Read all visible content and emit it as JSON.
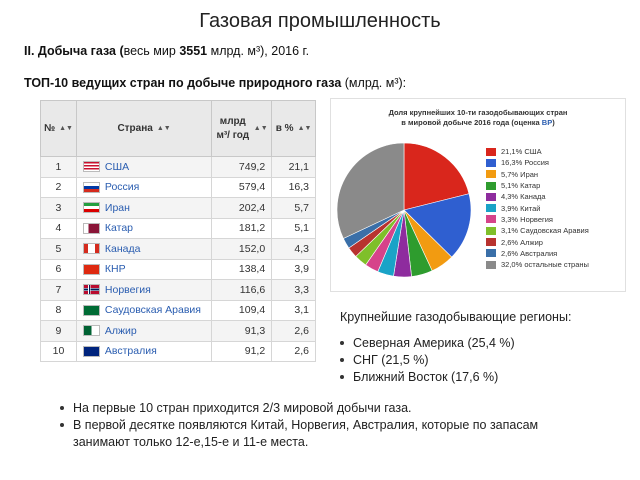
{
  "title": "Газовая промышленность",
  "subtitle": {
    "lead_bold": "II. Добыча газа (",
    "lead_plain": "весь мир ",
    "world_total": "3551",
    "rest": " млрд. м³), 2016 г."
  },
  "table_heading": {
    "bold": "ТОП-10 ведущих стран по добыче природного газа",
    "plain": " (млрд. м³):"
  },
  "table": {
    "headers": {
      "n": "№",
      "country": "Страна",
      "value": "млрд м³/ год",
      "pct": "в %"
    },
    "rows": [
      {
        "n": "1",
        "country": "США",
        "value": "749,2",
        "pct": "21,1",
        "flag": "usa"
      },
      {
        "n": "2",
        "country": "Россия",
        "value": "579,4",
        "pct": "16,3",
        "flag": "russia"
      },
      {
        "n": "3",
        "country": "Иран",
        "value": "202,4",
        "pct": "5,7",
        "flag": "iran"
      },
      {
        "n": "4",
        "country": "Катар",
        "value": "181,2",
        "pct": "5,1",
        "flag": "qatar"
      },
      {
        "n": "5",
        "country": "Канада",
        "value": "152,0",
        "pct": "4,3",
        "flag": "canada"
      },
      {
        "n": "6",
        "country": "КНР",
        "value": "138,4",
        "pct": "3,9",
        "flag": "china"
      },
      {
        "n": "7",
        "country": "Норвегия",
        "value": "116,6",
        "pct": "3,3",
        "flag": "norway"
      },
      {
        "n": "8",
        "country": "Саудовская Аравия",
        "value": "109,4",
        "pct": "3,1",
        "flag": "saudi"
      },
      {
        "n": "9",
        "country": "Алжир",
        "value": "91,3",
        "pct": "2,6",
        "flag": "algeria"
      },
      {
        "n": "10",
        "country": "Австралия",
        "value": "91,2",
        "pct": "2,6",
        "flag": "australia"
      }
    ]
  },
  "chart_data": {
    "type": "pie",
    "title": "Доля крупнейших 10-ти газодобывающих стран в мировой добыче 2016 года (оценка BP)",
    "title_line1": "Доля крупнейших 10-ти газодобывающих стран",
    "title_line2": "в мировой добыче 2016 года (оценка ",
    "title_source": "BP",
    "title_end": ")",
    "legend_position": "right",
    "slices": [
      {
        "label": "21,1% США",
        "value": 21.1,
        "color": "#d9261c"
      },
      {
        "label": "16,3% Россия",
        "value": 16.3,
        "color": "#2f5fd0"
      },
      {
        "label": "5,7% Иран",
        "value": 5.7,
        "color": "#f29b11"
      },
      {
        "label": "5,1% Катар",
        "value": 5.1,
        "color": "#2e9c2e"
      },
      {
        "label": "4,3% Канада",
        "value": 4.3,
        "color": "#8e2c9e"
      },
      {
        "label": "3,9% Китай",
        "value": 3.9,
        "color": "#1aa3c7"
      },
      {
        "label": "3,3% Норвегия",
        "value": 3.3,
        "color": "#d6438a"
      },
      {
        "label": "3,1% Саудовская Аравия",
        "value": 3.1,
        "color": "#7fbf2a"
      },
      {
        "label": "2,6% Алжир",
        "value": 2.6,
        "color": "#b8332f"
      },
      {
        "label": "2,6% Австралия",
        "value": 2.6,
        "color": "#3a6fa8"
      },
      {
        "label": "32,0% остальные страны",
        "value": 32.0,
        "color": "#8a8a8a"
      }
    ]
  },
  "regions": {
    "title": "Крупнейшие газодобывающие регионы:",
    "items": [
      "Северная Америка (25,4 %)",
      "СНГ (21,5 %)",
      "Ближний Восток (17,6 %)"
    ]
  },
  "notes": {
    "note1": "На первые 10 стран приходится 2/3 мировой добычи газа.",
    "note2_line1": "В первой десятке появляются Китай, Норвегия, Австралия, которые по запасам",
    "note2_line2": "занимают только 12-е,15-е и 11-е места."
  }
}
